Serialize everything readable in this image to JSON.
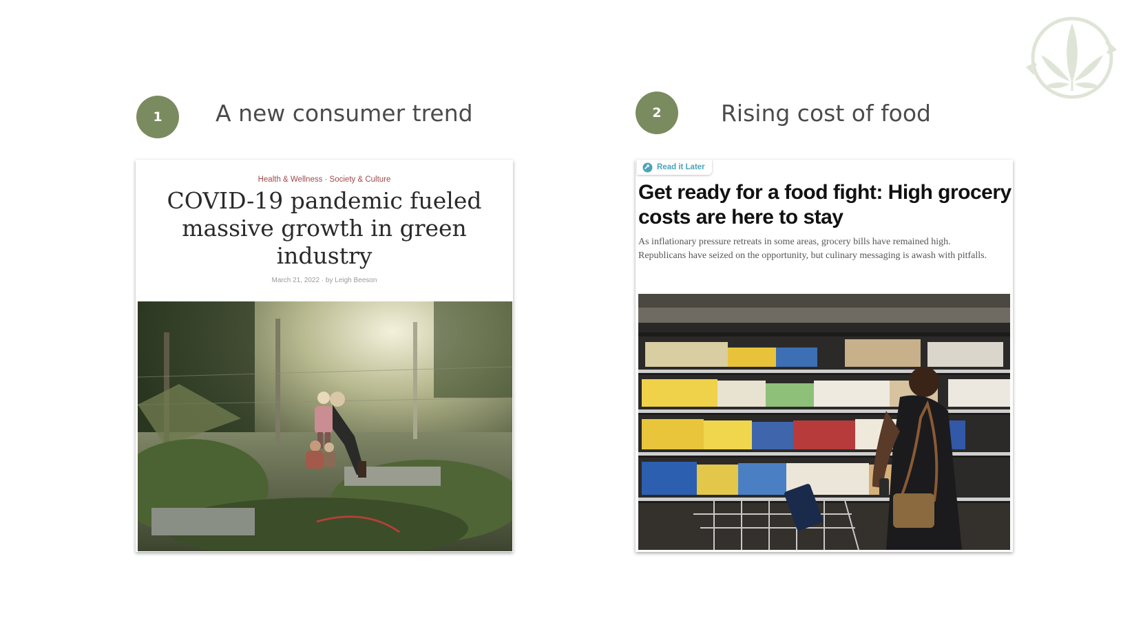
{
  "slide": {
    "logo_icon": "cannabis-leaf-recycle-logo",
    "accent_color": "#7a8b5f",
    "items": [
      {
        "number": "1",
        "heading": "A new consumer trend",
        "article": {
          "category": "Health & Wellness · Society & Culture",
          "title": "COVID-19 pandemic fueled massive growth in green industry",
          "meta": "March 21, 2022 · by Leigh Beeson",
          "image": "family-gardening-photo"
        }
      },
      {
        "number": "2",
        "heading": "Rising cost of food",
        "article": {
          "read_later": "Read it Later",
          "title": "Get ready for a food fight: High grocery costs are here to stay",
          "subtitle": "As inflationary pressure retreats in some areas, grocery bills have remained high. Republicans have seized on the opportunity, but culinary messaging is awash with pitfalls.",
          "image": "grocery-aisle-shopper-photo"
        }
      }
    ]
  }
}
